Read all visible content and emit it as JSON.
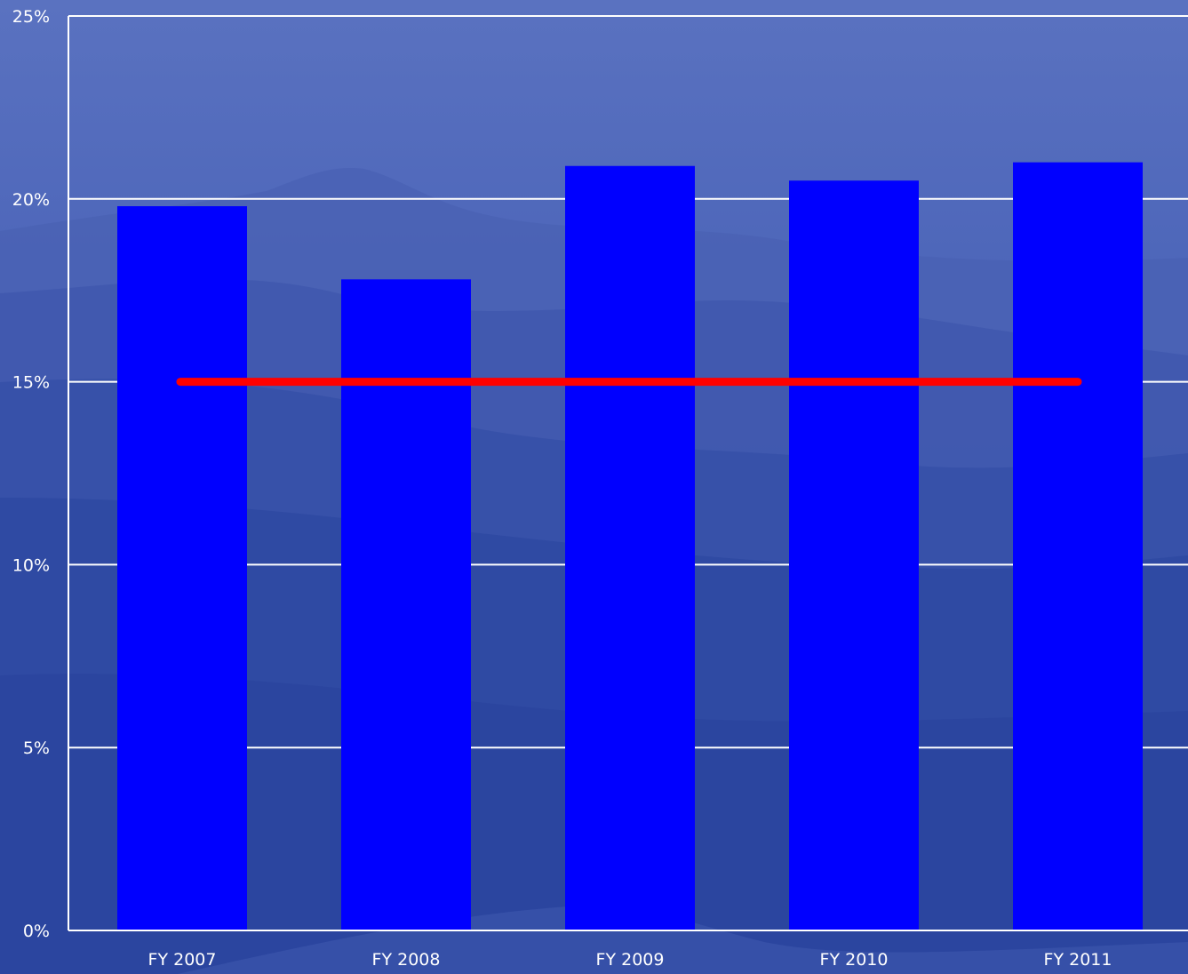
{
  "chart_data": {
    "type": "bar",
    "categories": [
      "FY 2007",
      "FY 2008",
      "FY 2009",
      "FY 2010",
      "FY 2011"
    ],
    "series": [
      {
        "values": [
          19.8,
          17.8,
          20.9,
          20.5,
          21.0
        ]
      }
    ],
    "reference_line": {
      "value": 15,
      "color": "#ff0000"
    },
    "yticks": [
      "0%",
      "5%",
      "10%",
      "15%",
      "20%",
      "25%"
    ],
    "ytick_values": [
      0,
      5,
      10,
      15,
      20,
      25
    ],
    "ylim": [
      0,
      25
    ],
    "grid": true,
    "legend": "none",
    "title": "",
    "xlabel": "",
    "ylabel": "",
    "colors": {
      "bar": "#0000ff",
      "reference_line": "#ff0000",
      "grid": "#ffffff",
      "background": "#3048a8"
    }
  }
}
